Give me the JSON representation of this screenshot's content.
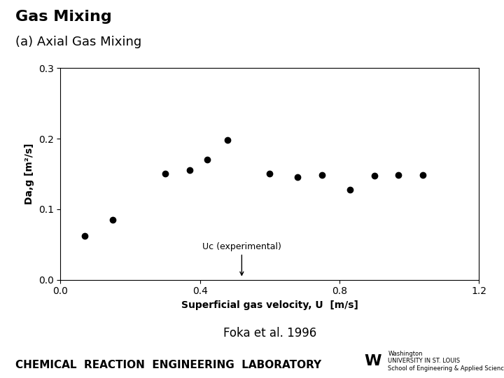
{
  "chart_data": {
    "type": "scatter",
    "title": "Gas Mixing",
    "subtitle": "(a) Axial Gas Mixing",
    "citation": "Foka et al. 1996",
    "footer": "CHEMICAL  REACTION  ENGINEERING  LABORATORY",
    "logo": [
      "W",
      "Washington\nUNIVERSITY IN ST. LOUIS\nSchool of Engineering & Applied Science"
    ],
    "x_label": "Superficial gas velocity, U  [m/s]",
    "y_label": "Da,g [m²/s]",
    "x": [
      0.07,
      0.15,
      0.3,
      0.37,
      0.42,
      0.48,
      0.6,
      0.68,
      0.75,
      0.83,
      0.9,
      0.97,
      1.04
    ],
    "values": [
      0.062,
      0.085,
      0.15,
      0.155,
      0.17,
      0.198,
      0.15,
      0.145,
      0.148,
      0.128,
      0.147,
      0.148,
      0.148
    ],
    "color": "black",
    "xlim": [
      0,
      1.2
    ],
    "ylim": [
      0.0,
      0.3
    ],
    "xticks": [
      0.0,
      0.4,
      0.8,
      1.2
    ],
    "yticks": [
      0.0,
      0.1,
      0.2,
      0.3
    ],
    "grid": false,
    "annotations": [
      {
        "text": "Uc (experimental)",
        "x": 0.52,
        "y": 0.002
      }
    ]
  }
}
